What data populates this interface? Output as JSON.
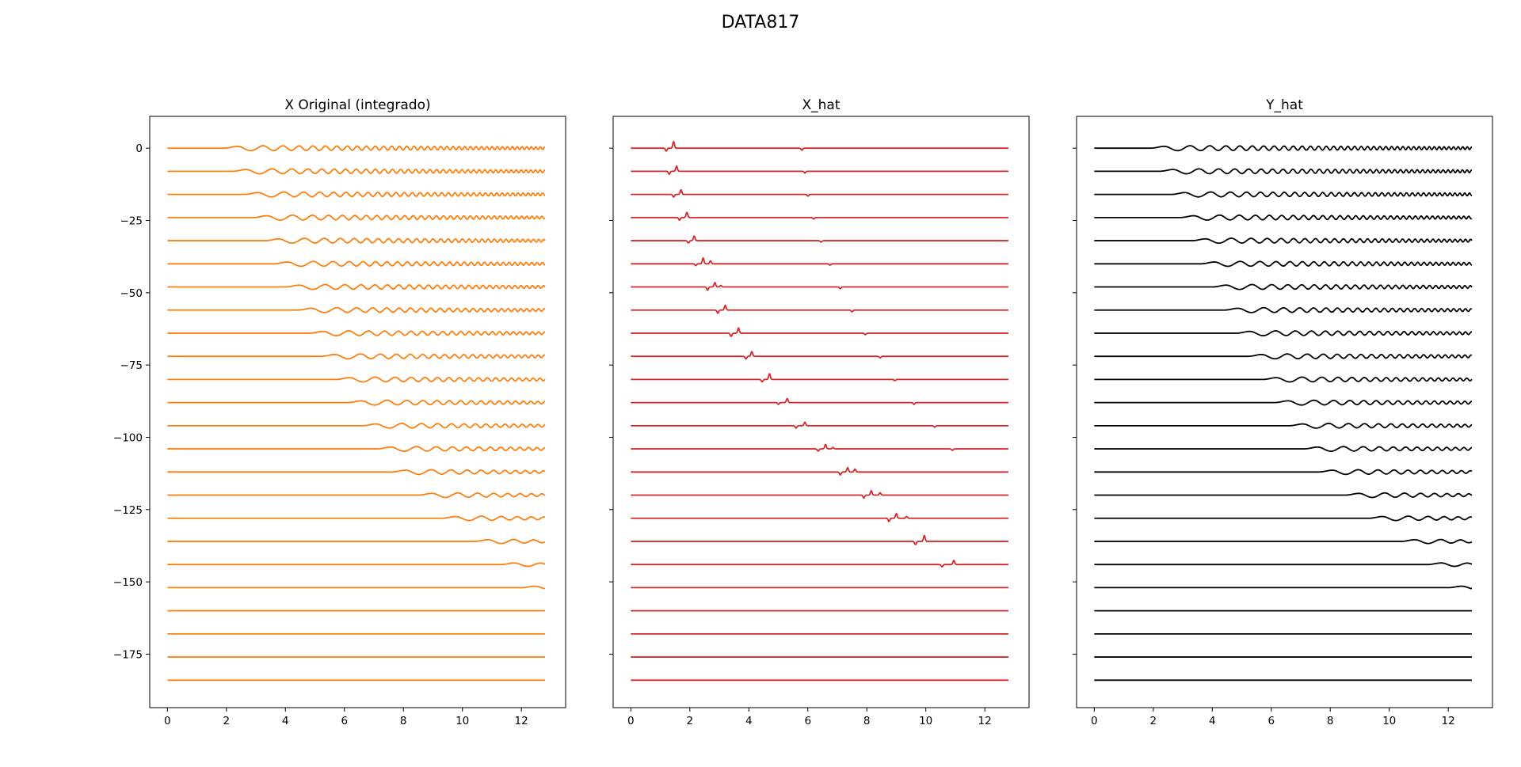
{
  "figure_title": "DATA817",
  "chart_data": [
    {
      "type": "line",
      "title": "X Original (integrado)",
      "color": "#ff7f0e",
      "signal": "chirp",
      "xlim": [
        -0.6,
        13.5
      ],
      "ylim": [
        -193.5,
        11
      ],
      "xticks": [
        "0",
        "2",
        "4",
        "6",
        "8",
        "10",
        "12"
      ],
      "yticks": [
        "0",
        "−25",
        "−50",
        "−75",
        "−100",
        "−125",
        "−150",
        "−175"
      ],
      "trace_spacing": -8,
      "trace_count": 24,
      "x_range": [
        0,
        12.8
      ],
      "onsets": [
        1.9,
        2.2,
        2.6,
        2.9,
        3.3,
        3.6,
        4.0,
        4.4,
        4.8,
        5.2,
        5.7,
        6.1,
        6.6,
        7.1,
        7.6,
        8.5,
        9.3,
        10.4,
        11.3,
        12.0,
        null,
        null,
        null,
        null
      ]
    },
    {
      "type": "line",
      "title": "X_hat",
      "color": "#d62728",
      "signal": "spikes",
      "xlim": [
        -0.6,
        13.5
      ],
      "ylim": [
        -193.5,
        11
      ],
      "xticks": [
        "0",
        "2",
        "4",
        "6",
        "8",
        "10",
        "12"
      ],
      "yticks": [
        "",
        "",
        "",
        "",
        "",
        "",
        "",
        ""
      ],
      "trace_spacing": -8,
      "trace_count": 24,
      "x_range": [
        0,
        12.8
      ],
      "spikes": [
        [
          [
            1.2,
            -1.0
          ],
          [
            1.45,
            2.2
          ],
          [
            5.8,
            -0.7
          ]
        ],
        [
          [
            1.3,
            -1.0
          ],
          [
            1.55,
            1.8
          ],
          [
            5.9,
            -0.6
          ]
        ],
        [
          [
            1.45,
            -0.9
          ],
          [
            1.7,
            1.6
          ],
          [
            6.0,
            -0.6
          ]
        ],
        [
          [
            1.65,
            -0.9
          ],
          [
            1.9,
            1.8
          ],
          [
            6.2,
            -0.5
          ]
        ],
        [
          [
            1.95,
            -0.8
          ],
          [
            2.15,
            1.6
          ],
          [
            6.45,
            -0.5
          ]
        ],
        [
          [
            2.2,
            -0.6
          ],
          [
            2.45,
            2.0
          ],
          [
            2.7,
            1.0
          ],
          [
            6.75,
            -0.5
          ]
        ],
        [
          [
            2.6,
            -1.1
          ],
          [
            2.85,
            1.5
          ],
          [
            3.05,
            0.5
          ],
          [
            7.1,
            -0.6
          ]
        ],
        [
          [
            2.95,
            -1.1
          ],
          [
            3.2,
            1.6
          ],
          [
            7.5,
            -0.6
          ]
        ],
        [
          [
            3.4,
            -1.1
          ],
          [
            3.65,
            1.8
          ],
          [
            7.95,
            -0.5
          ]
        ],
        [
          [
            3.9,
            -0.9
          ],
          [
            4.1,
            1.6
          ],
          [
            8.45,
            -0.5
          ]
        ],
        [
          [
            4.45,
            -0.8
          ],
          [
            4.7,
            2.0
          ],
          [
            8.95,
            -0.4
          ]
        ],
        [
          [
            5.0,
            -0.6
          ],
          [
            5.3,
            1.4
          ],
          [
            9.6,
            -0.6
          ]
        ],
        [
          [
            5.6,
            -0.8
          ],
          [
            5.9,
            1.2
          ],
          [
            10.3,
            -0.5
          ]
        ],
        [
          [
            6.35,
            -0.8
          ],
          [
            6.6,
            1.5
          ],
          [
            6.85,
            0.5
          ],
          [
            10.9,
            -0.5
          ]
        ],
        [
          [
            7.1,
            -1.0
          ],
          [
            7.35,
            1.5
          ],
          [
            7.6,
            1.0
          ]
        ],
        [
          [
            7.9,
            -1.0
          ],
          [
            8.15,
            1.5
          ],
          [
            8.45,
            0.8
          ]
        ],
        [
          [
            8.75,
            -1.1
          ],
          [
            9.0,
            1.6
          ],
          [
            9.35,
            0.6
          ]
        ],
        [
          [
            9.65,
            -1.1
          ],
          [
            9.95,
            2.0
          ]
        ],
        [
          [
            10.55,
            -0.8
          ],
          [
            10.95,
            1.4
          ]
        ],
        [],
        [],
        [],
        [],
        []
      ]
    },
    {
      "type": "line",
      "title": "Y_hat",
      "color": "#000000",
      "signal": "chirp",
      "xlim": [
        -0.6,
        13.5
      ],
      "ylim": [
        -193.5,
        11
      ],
      "xticks": [
        "0",
        "2",
        "4",
        "6",
        "8",
        "10",
        "12"
      ],
      "yticks": [
        "",
        "",
        "",
        "",
        "",
        "",
        "",
        ""
      ],
      "trace_spacing": -8,
      "trace_count": 24,
      "x_range": [
        0,
        12.8
      ],
      "onsets": [
        1.9,
        2.2,
        2.6,
        2.9,
        3.3,
        3.6,
        4.0,
        4.4,
        4.8,
        5.2,
        5.7,
        6.1,
        6.6,
        7.1,
        7.6,
        8.5,
        9.3,
        10.4,
        11.3,
        12.0,
        null,
        null,
        null,
        null
      ]
    }
  ]
}
